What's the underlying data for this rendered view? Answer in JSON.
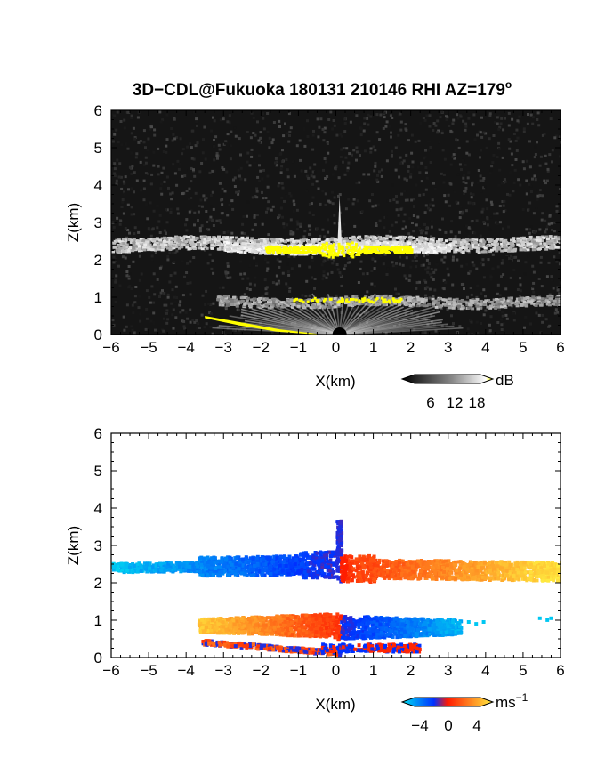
{
  "title": "3D−CDL@Fukuoka 180131 210146 RHI AZ=179",
  "title_sup": "o",
  "chart_data": [
    {
      "type": "heatmap",
      "name": "signal-intensity",
      "xlabel": "X(km)",
      "ylabel": "Z(km)",
      "xlim": [
        -6,
        6
      ],
      "ylim": [
        0,
        6
      ],
      "xticks": [
        "−6",
        "−5",
        "−4",
        "−3",
        "−2",
        "−1",
        "0",
        "1",
        "2",
        "3",
        "4",
        "5",
        "6"
      ],
      "yticks": [
        "0",
        "1",
        "2",
        "3",
        "4",
        "5",
        "6"
      ],
      "colorbar": {
        "unit": "dB",
        "ticks": [
          "6",
          "12",
          "18"
        ],
        "range": [
          0,
          20
        ],
        "colors": [
          "#000000",
          "#ffffff",
          "#ffff00"
        ]
      },
      "layers": [
        {
          "feature": "upper cloud layer",
          "z_center": 2.4,
          "x_range": [
            -6,
            6
          ],
          "intensity_db": 10
        },
        {
          "feature": "saturated core (upper)",
          "z": 2.35,
          "x_range": [
            -1.9,
            2.0
          ],
          "intensity_db": 20
        },
        {
          "feature": "vertical spike",
          "x": 0.1,
          "z_range": [
            2.0,
            3.7
          ],
          "intensity_db": 14
        },
        {
          "feature": "lower layer",
          "z_center": 0.85,
          "x_range": [
            -3.5,
            6
          ],
          "intensity_db": 9
        },
        {
          "feature": "ground clutter",
          "x_range": [
            -3.5,
            0
          ],
          "z_range": [
            0,
            0.5
          ],
          "intensity_db": 20
        }
      ]
    },
    {
      "type": "heatmap",
      "name": "doppler-velocity",
      "xlabel": "X(km)",
      "ylabel": "Z(km)",
      "xlim": [
        -6,
        6
      ],
      "ylim": [
        0,
        6
      ],
      "xticks": [
        "−6",
        "−5",
        "−4",
        "−3",
        "−2",
        "−1",
        "0",
        "1",
        "2",
        "3",
        "4",
        "5",
        "6"
      ],
      "yticks": [
        "0",
        "1",
        "2",
        "3",
        "4",
        "5",
        "6"
      ],
      "colorbar": {
        "unit": "ms",
        "unit_sup": "−1",
        "ticks": [
          "−4",
          "0",
          "4"
        ],
        "range": [
          -5,
          5
        ],
        "colors": [
          "#00e0f0",
          "#0030ff",
          "#ff1a00",
          "#ffee40"
        ]
      },
      "layers": [
        {
          "feature": "upper layer (left)",
          "x_range": [
            -6,
            0.1
          ],
          "z_center": 2.5,
          "velocity_ms": [
            -5,
            -1
          ]
        },
        {
          "feature": "upper layer (right)",
          "x_range": [
            0.1,
            6
          ],
          "z_center": 2.5,
          "velocity_ms": [
            1,
            5
          ]
        },
        {
          "feature": "lower layer (left)",
          "x_range": [
            -3.7,
            0.1
          ],
          "z_center": 0.85,
          "velocity_ms": [
            1,
            5
          ]
        },
        {
          "feature": "lower layer (right)",
          "x_range": [
            0.1,
            3.3
          ],
          "z_center": 0.85,
          "velocity_ms": [
            -4,
            -1
          ]
        }
      ]
    }
  ]
}
